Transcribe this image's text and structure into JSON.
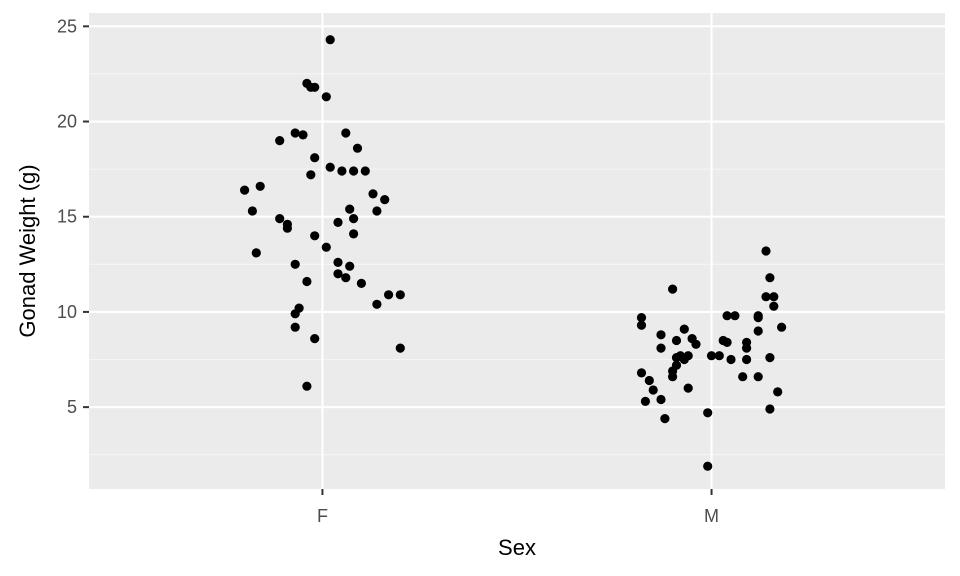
{
  "chart_data": {
    "type": "scatter",
    "title": "",
    "xlabel": "Sex",
    "ylabel": "Gonad Weight (g)",
    "categories": [
      "F",
      "M"
    ],
    "ylim": [
      0.7,
      25.7
    ],
    "y_ticks": [
      5,
      10,
      15,
      20,
      25
    ],
    "grid": true,
    "legend": "none",
    "jitter_note": "",
    "colors": {
      "panel": "#EBEBEB",
      "grid_major": "#FFFFFF",
      "grid_minor": "#F5F5F5",
      "point": "#000000",
      "tick": "#333333"
    },
    "series": [
      {
        "category": "F",
        "points": [
          [
            0.02,
            24.3
          ],
          [
            -0.04,
            22.0
          ],
          [
            -0.03,
            21.8
          ],
          [
            -0.02,
            21.8
          ],
          [
            0.01,
            21.3
          ],
          [
            -0.07,
            19.4
          ],
          [
            -0.05,
            19.3
          ],
          [
            -0.11,
            19.0
          ],
          [
            0.06,
            19.4
          ],
          [
            -0.02,
            18.1
          ],
          [
            0.09,
            18.6
          ],
          [
            0.02,
            17.6
          ],
          [
            -0.03,
            17.2
          ],
          [
            0.05,
            17.4
          ],
          [
            0.08,
            17.4
          ],
          [
            0.11,
            17.4
          ],
          [
            -0.2,
            16.4
          ],
          [
            -0.16,
            16.6
          ],
          [
            0.13,
            16.2
          ],
          [
            0.16,
            15.9
          ],
          [
            -0.18,
            15.3
          ],
          [
            0.07,
            15.4
          ],
          [
            0.14,
            15.3
          ],
          [
            -0.11,
            14.9
          ],
          [
            -0.09,
            14.6
          ],
          [
            -0.09,
            14.4
          ],
          [
            0.04,
            14.7
          ],
          [
            0.08,
            14.9
          ],
          [
            -0.02,
            14.0
          ],
          [
            0.08,
            14.1
          ],
          [
            0.01,
            13.4
          ],
          [
            -0.17,
            13.1
          ],
          [
            0.04,
            12.6
          ],
          [
            0.07,
            12.4
          ],
          [
            -0.07,
            12.5
          ],
          [
            0.04,
            12.0
          ],
          [
            0.06,
            11.8
          ],
          [
            0.1,
            11.5
          ],
          [
            -0.04,
            11.6
          ],
          [
            0.17,
            10.9
          ],
          [
            0.2,
            10.9
          ],
          [
            0.14,
            10.4
          ],
          [
            -0.06,
            10.2
          ],
          [
            -0.07,
            9.9
          ],
          [
            -0.07,
            9.2
          ],
          [
            -0.02,
            8.6
          ],
          [
            0.2,
            8.1
          ],
          [
            -0.04,
            6.1
          ]
        ]
      },
      {
        "category": "M",
        "points": [
          [
            0.14,
            13.2
          ],
          [
            0.15,
            11.8
          ],
          [
            -0.1,
            11.2
          ],
          [
            0.14,
            10.8
          ],
          [
            0.16,
            10.8
          ],
          [
            0.16,
            10.3
          ],
          [
            -0.18,
            9.7
          ],
          [
            0.04,
            9.8
          ],
          [
            0.06,
            9.8
          ],
          [
            0.12,
            9.7
          ],
          [
            0.12,
            9.8
          ],
          [
            -0.18,
            9.3
          ],
          [
            0.18,
            9.2
          ],
          [
            0.12,
            9.0
          ],
          [
            -0.07,
            9.1
          ],
          [
            -0.13,
            8.8
          ],
          [
            -0.05,
            8.6
          ],
          [
            -0.09,
            8.5
          ],
          [
            0.03,
            8.5
          ],
          [
            0.04,
            8.4
          ],
          [
            0.09,
            8.4
          ],
          [
            -0.04,
            8.3
          ],
          [
            0.09,
            8.1
          ],
          [
            -0.13,
            8.1
          ],
          [
            -0.08,
            7.7
          ],
          [
            -0.06,
            7.7
          ],
          [
            -0.09,
            7.6
          ],
          [
            -0.07,
            7.5
          ],
          [
            0.0,
            7.7
          ],
          [
            0.02,
            7.7
          ],
          [
            0.05,
            7.5
          ],
          [
            0.09,
            7.5
          ],
          [
            0.15,
            7.6
          ],
          [
            -0.09,
            7.2
          ],
          [
            -0.1,
            6.9
          ],
          [
            -0.18,
            6.8
          ],
          [
            -0.1,
            6.6
          ],
          [
            0.08,
            6.6
          ],
          [
            0.12,
            6.6
          ],
          [
            -0.16,
            6.4
          ],
          [
            -0.06,
            6.0
          ],
          [
            -0.15,
            5.9
          ],
          [
            -0.13,
            5.4
          ],
          [
            -0.17,
            5.3
          ],
          [
            0.15,
            4.9
          ],
          [
            0.17,
            5.8
          ],
          [
            -0.01,
            4.7
          ],
          [
            -0.12,
            4.4
          ],
          [
            -0.01,
            1.9
          ]
        ]
      }
    ]
  }
}
